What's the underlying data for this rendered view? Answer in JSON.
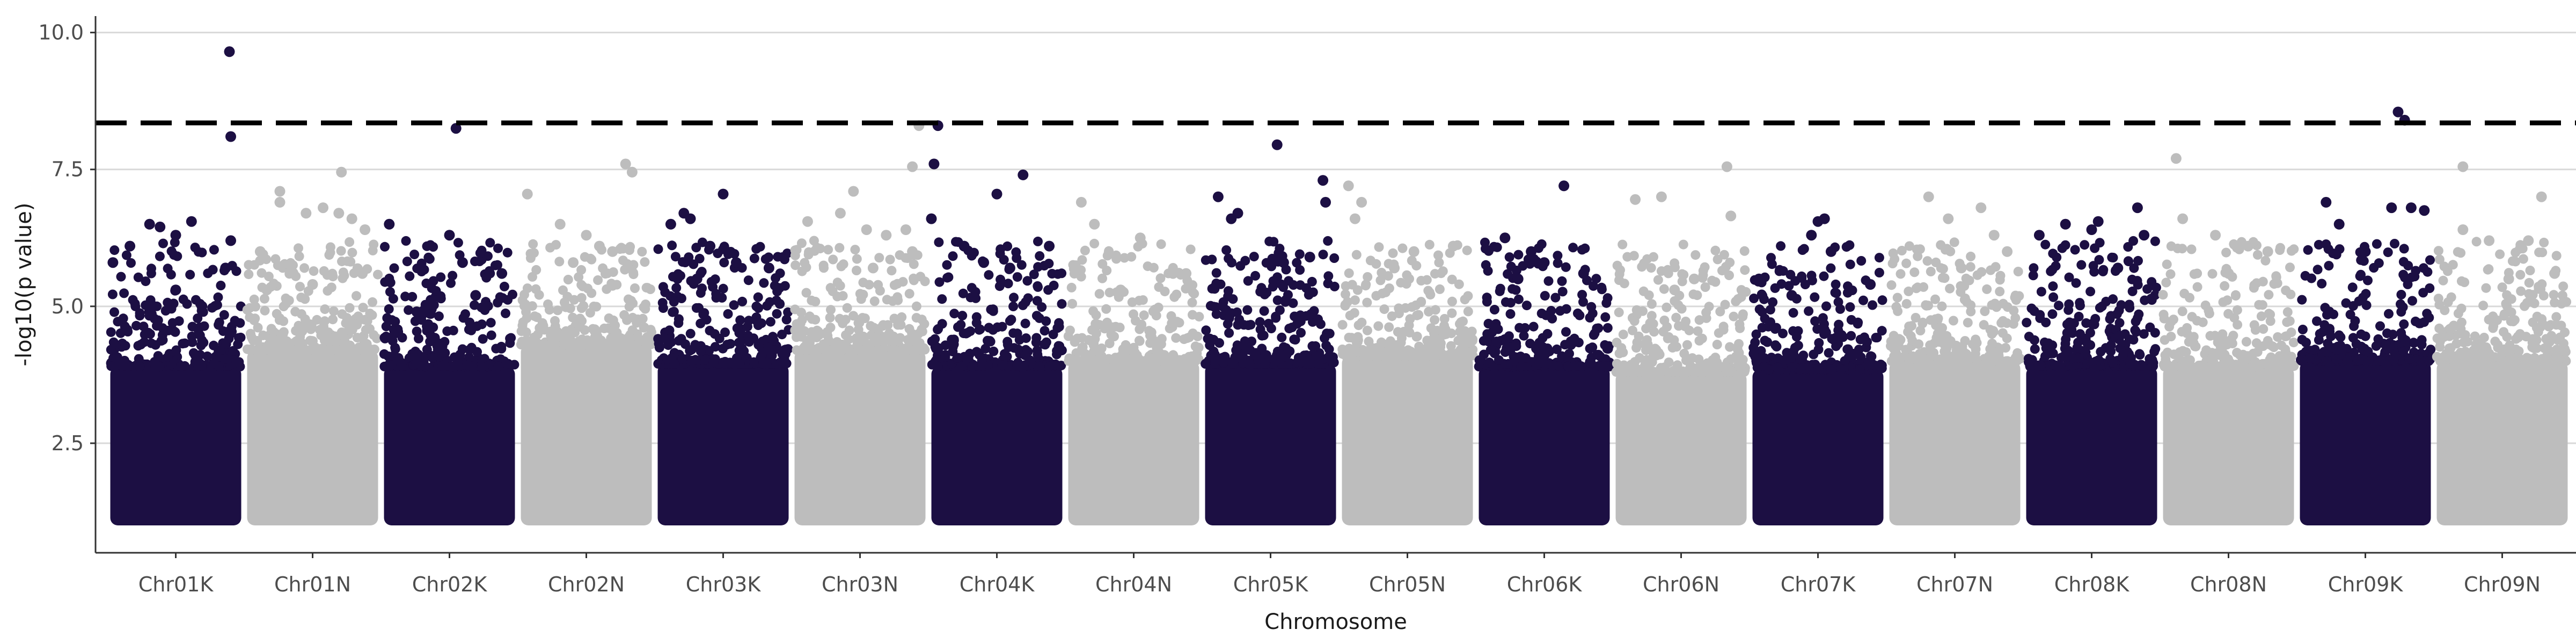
{
  "chart_data": {
    "type": "scatter",
    "subtype": "manhattan",
    "title": "",
    "xlabel": "Chromosome",
    "ylabel": "-log10(p value)",
    "ylim": [
      0.5,
      10.3
    ],
    "yticks": [
      2.5,
      5.0,
      7.5,
      10.0
    ],
    "ytick_labels": [
      "2.5",
      "5.0",
      "7.5",
      "10.0"
    ],
    "grid": "horizontal major lines at 2.5, 5.0, 7.5, 10.0",
    "threshold_line": {
      "y": 8.35,
      "style": "dashed",
      "color": "#000000"
    },
    "colors": {
      "odd": "#1c0f43",
      "even": "#bdbdbd",
      "grid": "#d9d9d9",
      "axis": "#333333"
    },
    "point_floor": 1.0,
    "categories": [
      "Chr01K",
      "Chr01N",
      "Chr02K",
      "Chr02N",
      "Chr03K",
      "Chr03N",
      "Chr04K",
      "Chr04N",
      "Chr05K",
      "Chr05N",
      "Chr06K",
      "Chr06N",
      "Chr07K",
      "Chr07N",
      "Chr08K",
      "Chr08N",
      "Chr09K",
      "Chr09N"
    ],
    "series": [
      {
        "chromosome": "Chr01K",
        "color": "odd",
        "band_top": 3.9,
        "notable_points": [
          [
            0.02,
            5.8
          ],
          [
            0.15,
            6.1
          ],
          [
            0.3,
            6.5
          ],
          [
            0.38,
            6.45
          ],
          [
            0.5,
            6.3
          ],
          [
            0.62,
            6.55
          ],
          [
            0.92,
            6.2
          ],
          [
            0.88,
            5.7
          ],
          [
            0.91,
            9.65
          ],
          [
            0.92,
            8.1
          ],
          [
            0.3,
            4.9
          ],
          [
            0.5,
            5.3
          ],
          [
            0.7,
            5.0
          ]
        ]
      },
      {
        "chromosome": "Chr01N",
        "color": "even",
        "band_top": 4.2,
        "notable_points": [
          [
            0.1,
            6.0
          ],
          [
            0.25,
            7.1
          ],
          [
            0.25,
            6.9
          ],
          [
            0.45,
            6.7
          ],
          [
            0.58,
            6.8
          ],
          [
            0.7,
            6.7
          ],
          [
            0.72,
            7.45
          ],
          [
            0.8,
            6.6
          ],
          [
            0.9,
            6.4
          ],
          [
            0.5,
            5.4
          ],
          [
            0.15,
            5.3
          ],
          [
            0.88,
            5.6
          ]
        ]
      },
      {
        "chromosome": "Chr02K",
        "color": "odd",
        "band_top": 3.9,
        "notable_points": [
          [
            0.04,
            6.5
          ],
          [
            0.5,
            6.3
          ],
          [
            0.55,
            8.25
          ],
          [
            0.6,
            5.8
          ],
          [
            0.9,
            5.6
          ],
          [
            0.25,
            4.9
          ],
          [
            0.7,
            5.2
          ]
        ]
      },
      {
        "chromosome": "Chr02N",
        "color": "even",
        "band_top": 4.3,
        "notable_points": [
          [
            0.05,
            7.05
          ],
          [
            0.3,
            6.5
          ],
          [
            0.5,
            6.3
          ],
          [
            0.6,
            6.1
          ],
          [
            0.8,
            7.6
          ],
          [
            0.85,
            7.45
          ],
          [
            0.7,
            6.0
          ],
          [
            0.4,
            5.8
          ]
        ]
      },
      {
        "chromosome": "Chr03K",
        "color": "odd",
        "band_top": 3.95,
        "notable_points": [
          [
            0.1,
            6.5
          ],
          [
            0.2,
            6.7
          ],
          [
            0.25,
            6.6
          ],
          [
            0.5,
            7.05
          ],
          [
            0.4,
            6.1
          ],
          [
            0.6,
            5.8
          ],
          [
            0.85,
            5.7
          ],
          [
            0.3,
            5.5
          ]
        ]
      },
      {
        "chromosome": "Chr03N",
        "color": "even",
        "band_top": 4.2,
        "notable_points": [
          [
            0.1,
            6.55
          ],
          [
            0.35,
            6.7
          ],
          [
            0.45,
            7.1
          ],
          [
            0.55,
            6.4
          ],
          [
            0.7,
            6.3
          ],
          [
            0.85,
            6.4
          ],
          [
            0.9,
            7.55
          ],
          [
            0.95,
            8.3
          ],
          [
            0.9,
            6.0
          ],
          [
            0.6,
            5.7
          ]
        ]
      },
      {
        "chromosome": "Chr04K",
        "color": "odd",
        "band_top": 3.9,
        "notable_points": [
          [
            0.02,
            7.6
          ],
          [
            0.0,
            6.6
          ],
          [
            0.25,
            6.1
          ],
          [
            0.5,
            7.05
          ],
          [
            0.7,
            7.4
          ],
          [
            0.9,
            6.1
          ],
          [
            0.05,
            8.3
          ],
          [
            0.4,
            5.8
          ],
          [
            0.6,
            5.7
          ]
        ]
      },
      {
        "chromosome": "Chr04N",
        "color": "even",
        "band_top": 4.0,
        "notable_points": [
          [
            0.1,
            6.9
          ],
          [
            0.2,
            6.5
          ],
          [
            0.55,
            6.25
          ],
          [
            0.8,
            5.6
          ],
          [
            0.9,
            5.6
          ],
          [
            0.4,
            5.3
          ]
        ]
      },
      {
        "chromosome": "Chr05K",
        "color": "odd",
        "band_top": 3.95,
        "notable_points": [
          [
            0.1,
            7.0
          ],
          [
            0.25,
            6.7
          ],
          [
            0.2,
            6.6
          ],
          [
            0.55,
            7.95
          ],
          [
            0.9,
            7.3
          ],
          [
            0.92,
            6.9
          ],
          [
            0.8,
            5.9
          ],
          [
            0.6,
            5.8
          ]
        ]
      },
      {
        "chromosome": "Chr05N",
        "color": "even",
        "band_top": 4.1,
        "notable_points": [
          [
            0.05,
            7.2
          ],
          [
            0.15,
            6.9
          ],
          [
            0.1,
            6.6
          ],
          [
            0.55,
            6.0
          ],
          [
            0.85,
            6.1
          ],
          [
            0.4,
            5.7
          ]
        ]
      },
      {
        "chromosome": "Chr06K",
        "color": "odd",
        "band_top": 3.9,
        "notable_points": [
          [
            0.2,
            6.25
          ],
          [
            0.4,
            6.0
          ],
          [
            0.65,
            7.2
          ],
          [
            0.8,
            5.6
          ],
          [
            0.5,
            5.8
          ],
          [
            0.3,
            5.5
          ]
        ]
      },
      {
        "chromosome": "Chr06N",
        "color": "even",
        "band_top": 3.8,
        "notable_points": [
          [
            0.15,
            6.95
          ],
          [
            0.35,
            7.0
          ],
          [
            0.85,
            7.55
          ],
          [
            0.88,
            6.65
          ],
          [
            0.6,
            5.5
          ],
          [
            0.45,
            5.3
          ]
        ]
      },
      {
        "chromosome": "Chr07K",
        "color": "odd",
        "band_top": 3.85,
        "notable_points": [
          [
            0.05,
            5.5
          ],
          [
            0.5,
            6.55
          ],
          [
            0.55,
            6.6
          ],
          [
            0.45,
            6.3
          ],
          [
            0.6,
            6.0
          ],
          [
            0.9,
            5.4
          ],
          [
            0.3,
            5.2
          ]
        ]
      },
      {
        "chromosome": "Chr07N",
        "color": "even",
        "band_top": 4.0,
        "notable_points": [
          [
            0.3,
            7.0
          ],
          [
            0.45,
            6.6
          ],
          [
            0.7,
            6.8
          ],
          [
            0.8,
            6.3
          ],
          [
            0.9,
            6.0
          ],
          [
            0.55,
            5.7
          ]
        ]
      },
      {
        "chromosome": "Chr08K",
        "color": "odd",
        "band_top": 3.9,
        "notable_points": [
          [
            0.1,
            6.3
          ],
          [
            0.3,
            6.5
          ],
          [
            0.5,
            6.4
          ],
          [
            0.55,
            6.55
          ],
          [
            0.85,
            6.8
          ],
          [
            0.9,
            6.3
          ],
          [
            0.7,
            5.7
          ]
        ]
      },
      {
        "chromosome": "Chr08N",
        "color": "even",
        "band_top": 3.9,
        "notable_points": [
          [
            0.1,
            7.7
          ],
          [
            0.15,
            6.6
          ],
          [
            0.4,
            6.3
          ],
          [
            0.65,
            6.1
          ],
          [
            0.8,
            6.0
          ],
          [
            0.5,
            5.6
          ]
        ]
      },
      {
        "chromosome": "Chr09K",
        "color": "odd",
        "band_top": 4.0,
        "notable_points": [
          [
            0.2,
            6.9
          ],
          [
            0.3,
            6.5
          ],
          [
            0.75,
            8.55
          ],
          [
            0.8,
            8.4
          ],
          [
            0.7,
            6.8
          ],
          [
            0.85,
            6.8
          ],
          [
            0.95,
            6.75
          ],
          [
            0.5,
            6.0
          ]
        ]
      },
      {
        "chromosome": "Chr09N",
        "color": "even",
        "band_top": 4.0,
        "notable_points": [
          [
            0.2,
            7.55
          ],
          [
            0.2,
            6.4
          ],
          [
            0.4,
            6.2
          ],
          [
            0.7,
            6.2
          ],
          [
            0.8,
            7.0
          ],
          [
            0.9,
            5.6
          ],
          [
            0.55,
            5.5
          ]
        ]
      }
    ]
  }
}
